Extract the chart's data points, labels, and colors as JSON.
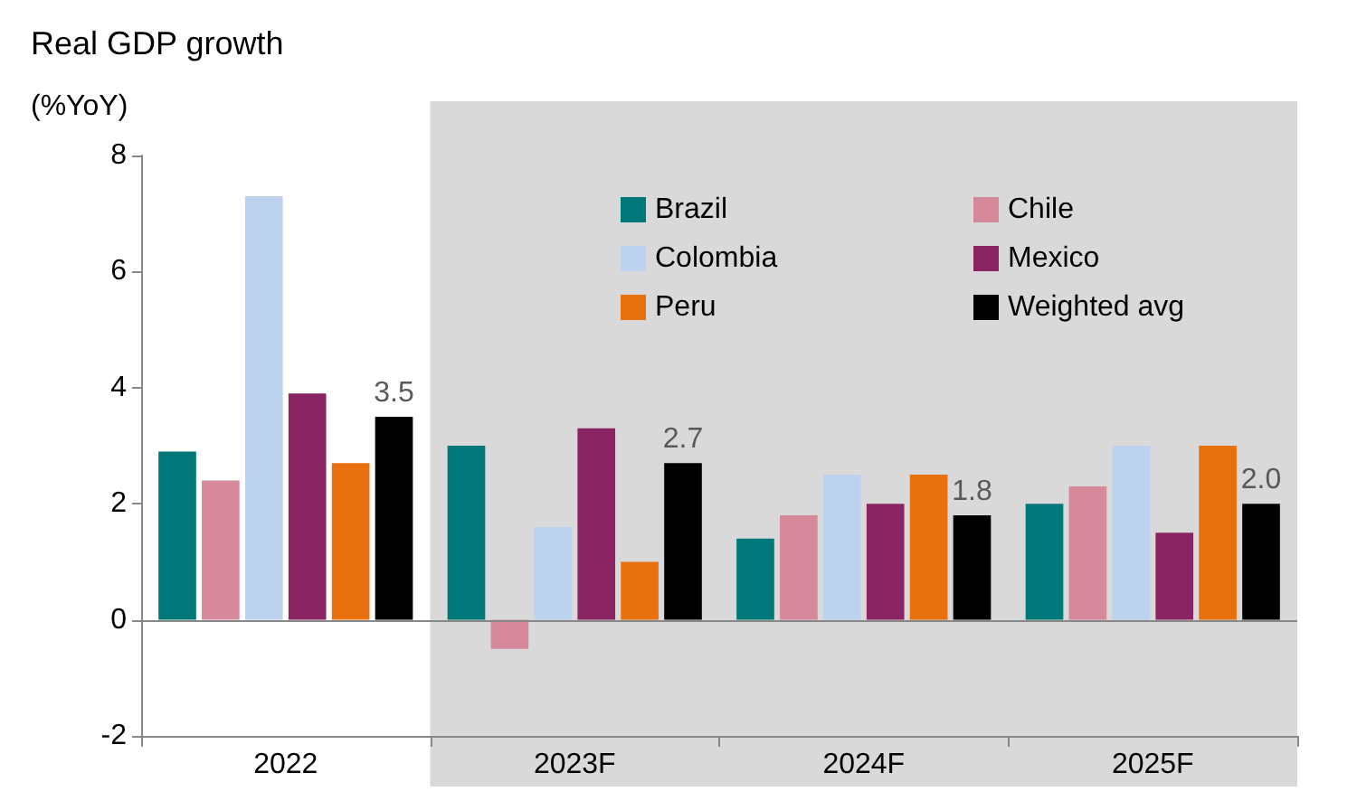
{
  "chart_data": {
    "type": "bar",
    "title": "Real GDP growth",
    "ylabel": "(%YoY)",
    "categories": [
      "2022",
      "2023F",
      "2024F",
      "2025F"
    ],
    "series": [
      {
        "name": "Brazil",
        "color": "#00787a",
        "values": [
          2.9,
          3.0,
          1.4,
          2.0
        ]
      },
      {
        "name": "Chile",
        "color": "#d6899a",
        "values": [
          2.4,
          -0.5,
          1.8,
          2.3
        ]
      },
      {
        "name": "Colombia",
        "color": "#bcd2ee",
        "values": [
          7.3,
          1.6,
          2.5,
          3.0
        ]
      },
      {
        "name": "Mexico",
        "color": "#8b2463",
        "values": [
          3.9,
          3.3,
          2.0,
          1.5
        ]
      },
      {
        "name": "Peru",
        "color": "#e8700e",
        "values": [
          2.7,
          1.0,
          2.5,
          3.0
        ]
      },
      {
        "name": "Weighted avg",
        "color": "#000000",
        "values": [
          3.5,
          2.7,
          1.8,
          2.0
        ],
        "value_labels": [
          "3.5",
          "2.7",
          "1.8",
          "2.0"
        ]
      }
    ],
    "ylim": [
      -2,
      8
    ],
    "yticks": [
      -2,
      0,
      2,
      4,
      6,
      8
    ],
    "grid": false,
    "legend": "top right",
    "ref_lines": [
      {
        "axis": "y",
        "value": 0,
        "color": "#888888"
      }
    ],
    "bands": [
      {
        "axis": "x",
        "from": "2023F",
        "to": "2025F",
        "color": "#d9d9d9"
      }
    ]
  }
}
